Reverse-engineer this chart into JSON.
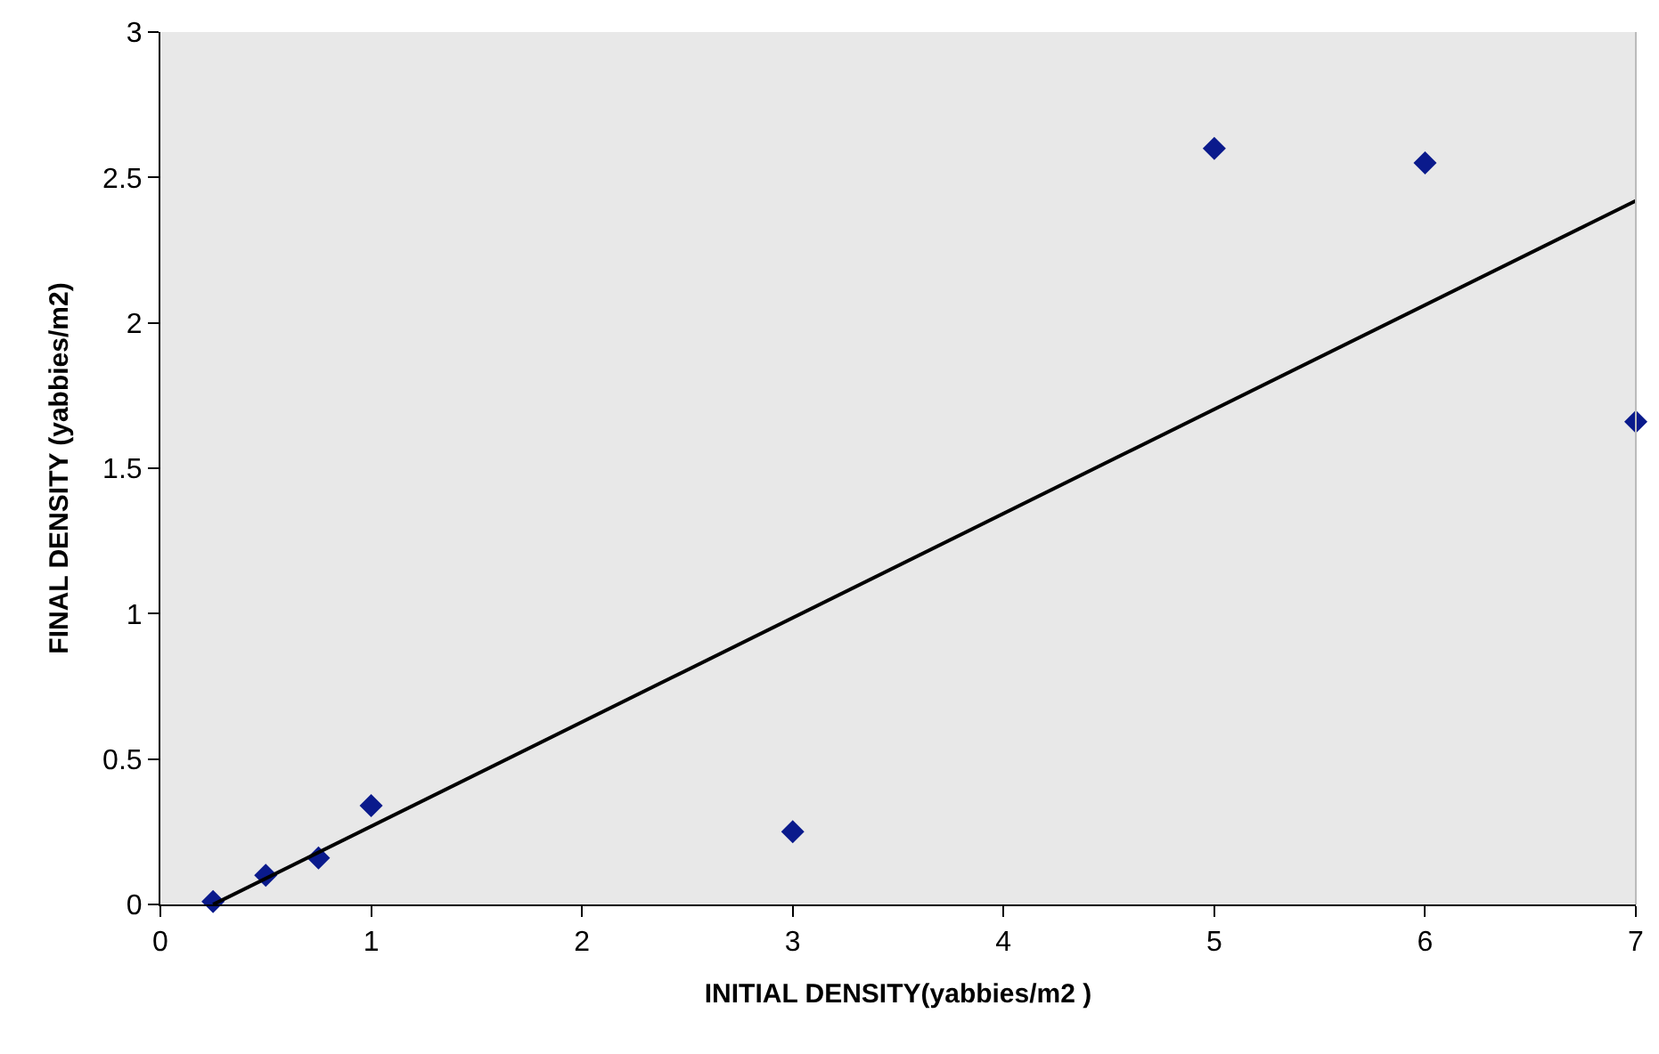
{
  "chart_data": {
    "type": "scatter",
    "xlabel": "INITIAL DENSITY(yabbies/m2 )",
    "ylabel": "FINAL DENSITY (yabbies/m2)",
    "x": [
      0.25,
      0.5,
      0.75,
      1,
      3,
      5,
      6,
      7
    ],
    "series": [
      {
        "color": "#0a1a8c",
        "marker": "diamond",
        "values": [
          0.01,
          0.1,
          0.16,
          0.34,
          0.25,
          2.6,
          2.55,
          1.66
        ]
      },
      {
        "type": "line",
        "color": "#000000",
        "marker": "none",
        "x": [
          0.25,
          7
        ],
        "values": [
          0,
          2.42
        ]
      }
    ],
    "xlim": [
      0,
      7
    ],
    "ylim": [
      0,
      3
    ],
    "xticks": [
      0,
      1,
      2,
      3,
      4,
      5,
      6,
      7
    ],
    "yticks": [
      0,
      0.5,
      1,
      1.5,
      2,
      2.5,
      3
    ],
    "grid": false
  }
}
